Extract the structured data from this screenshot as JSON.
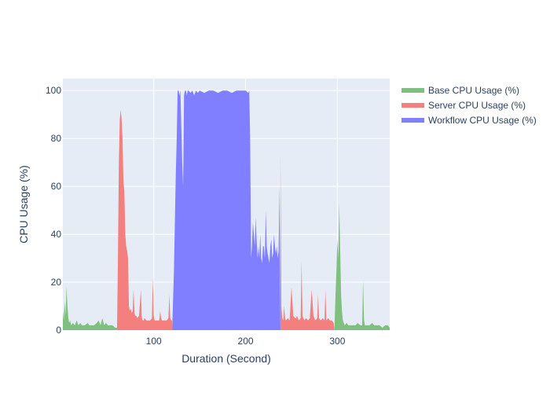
{
  "chart_data": {
    "type": "area",
    "title": "",
    "xlabel": "Duration (Second)",
    "ylabel": "CPU Usage (%)",
    "xlim": [
      1,
      357
    ],
    "ylim": [
      0,
      105
    ],
    "xticks": [
      100,
      200,
      300
    ],
    "yticks": [
      0,
      20,
      40,
      60,
      80,
      100
    ],
    "grid": true,
    "legend_position": "top-right",
    "series": [
      {
        "name": "Base CPU Usage (%)",
        "color": "#7fbf7f",
        "segments": [
          {
            "x": [
              1,
              2,
              3,
              4,
              5,
              6,
              7,
              8,
              9,
              10,
              12,
              14,
              16,
              18,
              20,
              22,
              25,
              28,
              30,
              32,
              35,
              38,
              40,
              42,
              44,
              46,
              48,
              50,
              52,
              55,
              58,
              60
            ],
            "y": [
              8,
              4,
              12,
              6,
              18,
              10,
              5,
              3,
              4,
              2,
              3,
              2,
              4,
              2,
              3,
              2,
              2,
              3,
              2,
              2,
              2,
              3,
              4,
              2,
              5,
              2,
              3,
              2,
              2,
              2,
              1,
              1
            ]
          },
          {
            "x": [
              297,
              298,
              299,
              300,
              301,
              302,
              303,
              304,
              305,
              306,
              308,
              310,
              312,
              315,
              318,
              320,
              322,
              325,
              327,
              328,
              329,
              330,
              332,
              335,
              338,
              340,
              343,
              346,
              349,
              352,
              355,
              357
            ],
            "y": [
              3,
              15,
              25,
              38,
              30,
              53,
              35,
              15,
              8,
              4,
              2,
              3,
              2,
              2,
              2,
              2,
              3,
              2,
              2,
              21,
              4,
              2,
              2,
              2,
              3,
              2,
              2,
              2,
              1,
              2,
              2,
              1
            ]
          }
        ]
      },
      {
        "name": "Server CPU Usage (%)",
        "color": "#f47f7f",
        "segments": [
          {
            "x": [
              60,
              61,
              62,
              63,
              64,
              65,
              66,
              67,
              68,
              69,
              70,
              71,
              72,
              73,
              74,
              75,
              76,
              77,
              78,
              79,
              80,
              81,
              82,
              84,
              86,
              87,
              88,
              89,
              90,
              92,
              94,
              96,
              98,
              99,
              100,
              101,
              102,
              104,
              106,
              107,
              108,
              109,
              110,
              112,
              114,
              116,
              117,
              118,
              119,
              120
            ],
            "y": [
              0,
              30,
              70,
              88,
              92,
              88,
              80,
              62,
              58,
              40,
              35,
              33,
              30,
              10,
              8,
              9,
              7,
              8,
              17,
              7,
              6,
              6,
              5,
              6,
              17,
              5,
              4,
              4,
              5,
              4,
              4,
              4,
              5,
              22,
              6,
              4,
              4,
              4,
              4,
              8,
              5,
              4,
              4,
              4,
              4,
              5,
              15,
              5,
              4,
              4
            ]
          },
          {
            "x": [
              238,
              239,
              240,
              241,
              242,
              243,
              244,
              246,
              248,
              250,
              252,
              254,
              255,
              256,
              258,
              260,
              261,
              262,
              264,
              266,
              268,
              270,
              272,
              274,
              276,
              278,
              279,
              280,
              282,
              284,
              286,
              287,
              288,
              290,
              292,
              294,
              296,
              297
            ],
            "y": [
              74,
              10,
              5,
              4,
              10,
              5,
              4,
              5,
              4,
              18,
              6,
              5,
              5,
              6,
              4,
              5,
              29,
              6,
              4,
              5,
              4,
              5,
              17,
              6,
              4,
              5,
              15,
              5,
              4,
              5,
              4,
              17,
              4,
              5,
              4,
              4,
              3,
              0
            ]
          }
        ]
      },
      {
        "name": "Workflow CPU Usage (%)",
        "color": "#7f7fff",
        "segments": [
          {
            "x": [
              120,
              121,
              122,
              123,
              124,
              125,
              126,
              127,
              128,
              129,
              130,
              131,
              132,
              133,
              134,
              135,
              136,
              137,
              138,
              140,
              142,
              144,
              146,
              148,
              150,
              155,
              160,
              165,
              170,
              175,
              180,
              185,
              190,
              195,
              200,
              203,
              204,
              205,
              206,
              207,
              208,
              209,
              210,
              211,
              212,
              213,
              214,
              215,
              216,
              217,
              218,
              219,
              220,
              221,
              222,
              223,
              224,
              225,
              226,
              227,
              228,
              229,
              230,
              231,
              232,
              233,
              234,
              235,
              236,
              237,
              238
            ],
            "y": [
              0,
              12,
              25,
              45,
              65,
              80,
              100,
              100,
              98,
              100,
              85,
              70,
              60,
              98,
              100,
              100,
              98,
              100,
              100,
              99,
              100,
              98,
              100,
              99,
              100,
              99,
              100,
              100,
              99,
              100,
              100,
              99,
              100,
              100,
              100,
              99,
              100,
              80,
              30,
              35,
              45,
              40,
              35,
              47,
              38,
              30,
              35,
              30,
              40,
              30,
              28,
              35,
              35,
              30,
              50,
              35,
              32,
              30,
              28,
              35,
              38,
              30,
              32,
              40,
              35,
              32,
              35,
              30,
              33,
              60,
              0
            ]
          }
        ]
      }
    ]
  }
}
